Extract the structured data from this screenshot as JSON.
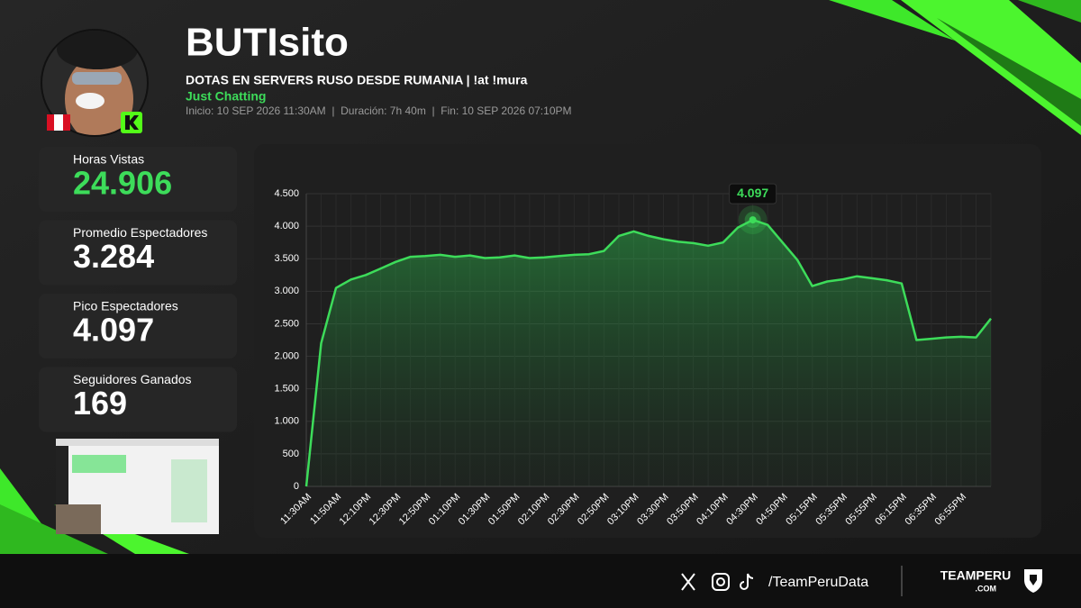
{
  "header": {
    "name": "BUTIsito",
    "stream_title": "DOTAS EN SERVERS RUSO DESDE RUMANIA | !at !mura",
    "category": "Just Chatting",
    "info": "Inicio: 10 SEP 2026 11:30AM  |  Duración: 7h 40m  |  Fin: 10 SEP 2026 07:10PM"
  },
  "stats": [
    {
      "label": "Horas Vistas",
      "value": "24.906"
    },
    {
      "label": "Promedio Espectadores",
      "value": "3.284"
    },
    {
      "label": "Pico Espectadores",
      "value": "4.097"
    },
    {
      "label": "Seguidores Ganados",
      "value": "169"
    }
  ],
  "chart_data": {
    "type": "line",
    "categories": [
      "11:30AM",
      null,
      "11:50AM",
      null,
      "12:10PM",
      null,
      "12:30PM",
      null,
      "12:50PM",
      null,
      "01:10PM",
      null,
      "01:30PM",
      null,
      "01:50PM",
      null,
      "02:10PM",
      null,
      "02:30PM",
      null,
      "02:50PM",
      null,
      "03:10PM",
      null,
      "03:30PM",
      null,
      "03:50PM",
      null,
      "04:10PM",
      null,
      "04:30PM",
      null,
      "04:50PM",
      null,
      "05:15PM",
      null,
      "05:35PM",
      null,
      "05:55PM",
      null,
      "06:15PM",
      null,
      "06:35PM",
      null,
      "06:55PM",
      null,
      null
    ],
    "series": [
      {
        "color": "#3ddc5a",
        "values": [
          0,
          2200,
          3050,
          3180,
          3250,
          3350,
          3450,
          3530,
          3540,
          3560,
          3530,
          3550,
          3510,
          3520,
          3550,
          3510,
          3520,
          3540,
          3560,
          3570,
          3620,
          3850,
          3920,
          3850,
          3800,
          3760,
          3740,
          3700,
          3750,
          3980,
          4097,
          4020,
          3750,
          3480,
          3080,
          3150,
          3180,
          3230,
          3200,
          3170,
          3120,
          2250,
          2270,
          2290,
          2300,
          2290,
          2580
        ],
        "value_labels": [
          null,
          null,
          null,
          null,
          null,
          null,
          null,
          null,
          null,
          null,
          null,
          null,
          null,
          null,
          null,
          null,
          null,
          null,
          null,
          null,
          null,
          null,
          null,
          null,
          null,
          null,
          null,
          null,
          null,
          null,
          "4.097",
          null,
          null,
          null,
          null,
          null,
          null,
          null,
          null,
          null,
          null,
          null,
          null,
          null,
          null,
          null,
          null
        ]
      }
    ],
    "ylim": [
      0,
      4500
    ],
    "yticks": [
      0,
      500,
      {
        "value": 1000,
        "label": "1.000"
      },
      {
        "value": 1500,
        "label": "1.500"
      },
      {
        "value": 2000,
        "label": "2.000"
      },
      {
        "value": 2500,
        "label": "2.500"
      },
      {
        "value": 3000,
        "label": "3.000"
      },
      {
        "value": 3500,
        "label": "3.500"
      },
      {
        "value": 4000,
        "label": "4.000"
      },
      {
        "value": 4500,
        "label": "4.500"
      }
    ],
    "grid": true
  },
  "footer": {
    "handle": "/TeamPeruData",
    "brand": "TEAMPERU",
    "brand_suffix": ".COM"
  }
}
